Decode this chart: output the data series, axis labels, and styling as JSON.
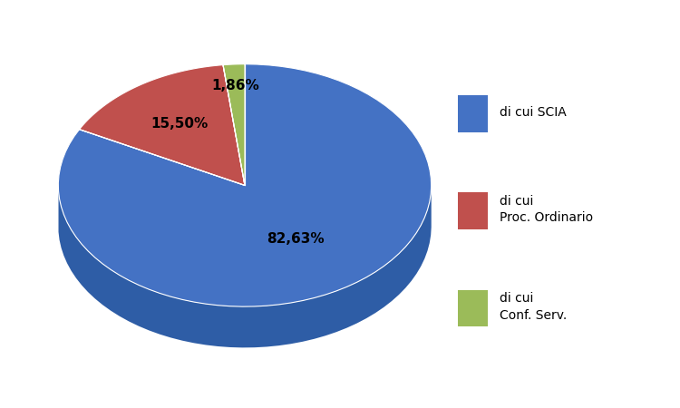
{
  "values": [
    82.63,
    15.5,
    1.86
  ],
  "labels": [
    "di cui SCIA",
    "di cui\nProc. Ordinario",
    "di cui\nConf. Serv."
  ],
  "colors": [
    "#4472C4",
    "#C0504D",
    "#9BBB59"
  ],
  "side_colors": [
    "#2E5DA6",
    "#8B3030",
    "#6B8020"
  ],
  "startangle": 90,
  "autopct_labels": [
    "82,63%",
    "15,50%",
    "1,86%"
  ],
  "label_angles_deg": [
    -50,
    145,
    100
  ],
  "label_radii": [
    0.55,
    0.6,
    0.78
  ],
  "background_color": "#FFFFFF",
  "legend_labels": [
    "di cui SCIA",
    "di cui\nProc. Ordinario",
    "di cui\nConf. Serv."
  ],
  "legend_colors": [
    "#4472C4",
    "#C0504D",
    "#9BBB59"
  ]
}
